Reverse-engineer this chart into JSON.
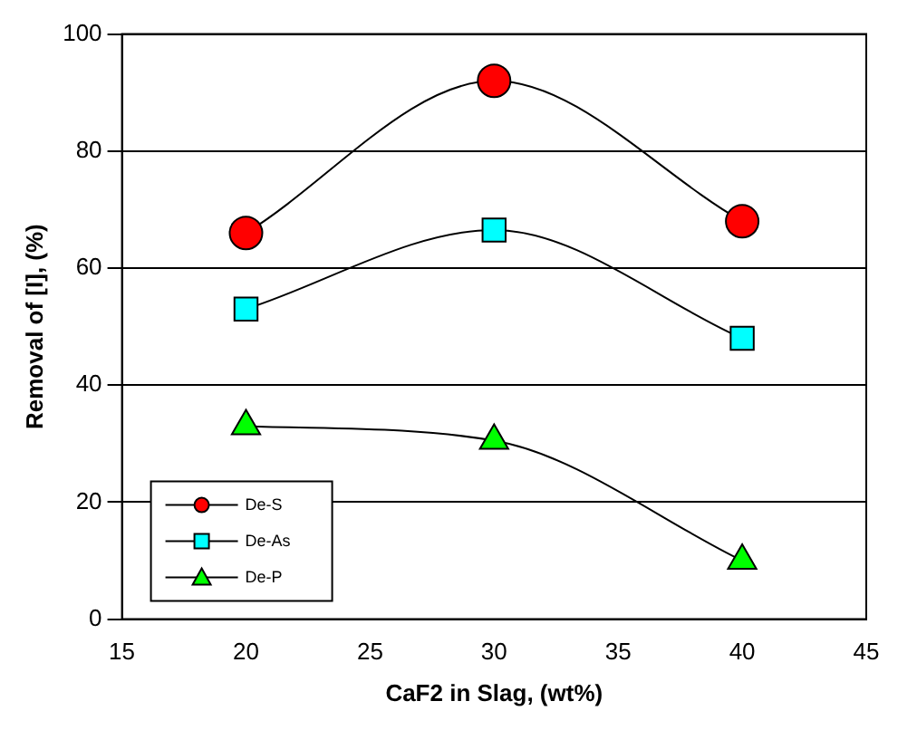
{
  "chart_data": {
    "type": "line",
    "xlabel": "CaF2 in Slag, (wt%)",
    "ylabel": "Removal of [I], (%)",
    "x": [
      20,
      30,
      40
    ],
    "series": [
      {
        "name": "De-S",
        "color": "#ff0000",
        "marker": "circle",
        "values": [
          66,
          92,
          68
        ]
      },
      {
        "name": "De-As",
        "color": "#00ffff",
        "marker": "square",
        "values": [
          53,
          66.5,
          48
        ]
      },
      {
        "name": "De-P",
        "color": "#00ff00",
        "marker": "triangle",
        "values": [
          33,
          30.5,
          10
        ]
      }
    ],
    "xlim": [
      15,
      45
    ],
    "xticks": [
      15,
      20,
      25,
      30,
      35,
      40,
      45
    ],
    "ylim": [
      0,
      100
    ],
    "yticks": [
      0,
      20,
      40,
      60,
      80,
      100
    ],
    "grid": "y",
    "legend": "bottom left"
  }
}
